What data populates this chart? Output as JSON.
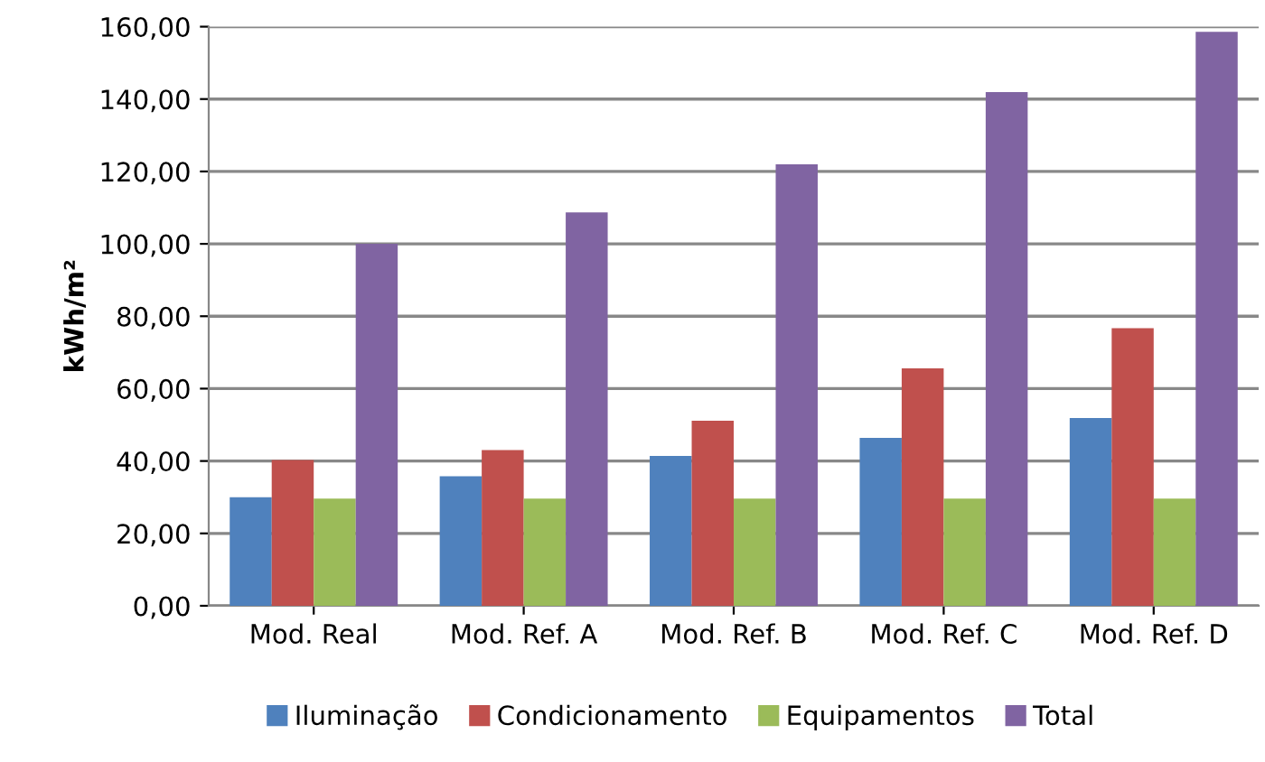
{
  "chart_data": {
    "type": "bar",
    "ylabel": "kWh/m²",
    "categories": [
      "Mod. Real",
      "Mod. Ref. A",
      "Mod. Ref. B",
      "Mod. Ref. C",
      "Mod. Ref. D"
    ],
    "series": [
      {
        "name": "Iluminação",
        "color": "#4f81bd",
        "values": [
          30.0,
          35.8,
          41.4,
          46.4,
          51.9
        ]
      },
      {
        "name": "Condicionamento",
        "color": "#c0504d",
        "values": [
          40.3,
          43.0,
          51.1,
          65.6,
          76.7
        ]
      },
      {
        "name": "Equipamentos",
        "color": "#9bbb59",
        "values": [
          29.6,
          29.6,
          29.6,
          29.6,
          29.6
        ]
      },
      {
        "name": "Total",
        "color": "#8064a2",
        "values": [
          100.0,
          108.7,
          122.0,
          141.9,
          158.6
        ]
      }
    ],
    "ylim": [
      0,
      160
    ],
    "yticks": [
      {
        "value": 0,
        "label": "0,00"
      },
      {
        "value": 20,
        "label": "20,00"
      },
      {
        "value": 40,
        "label": "40,00"
      },
      {
        "value": 60,
        "label": "60,00"
      },
      {
        "value": 80,
        "label": "80,00"
      },
      {
        "value": 100,
        "label": "100,00"
      },
      {
        "value": 120,
        "label": "120,00"
      },
      {
        "value": 140,
        "label": "140,00"
      },
      {
        "value": 160,
        "label": "160,00"
      }
    ],
    "grid": "y",
    "legend": "bottom"
  }
}
